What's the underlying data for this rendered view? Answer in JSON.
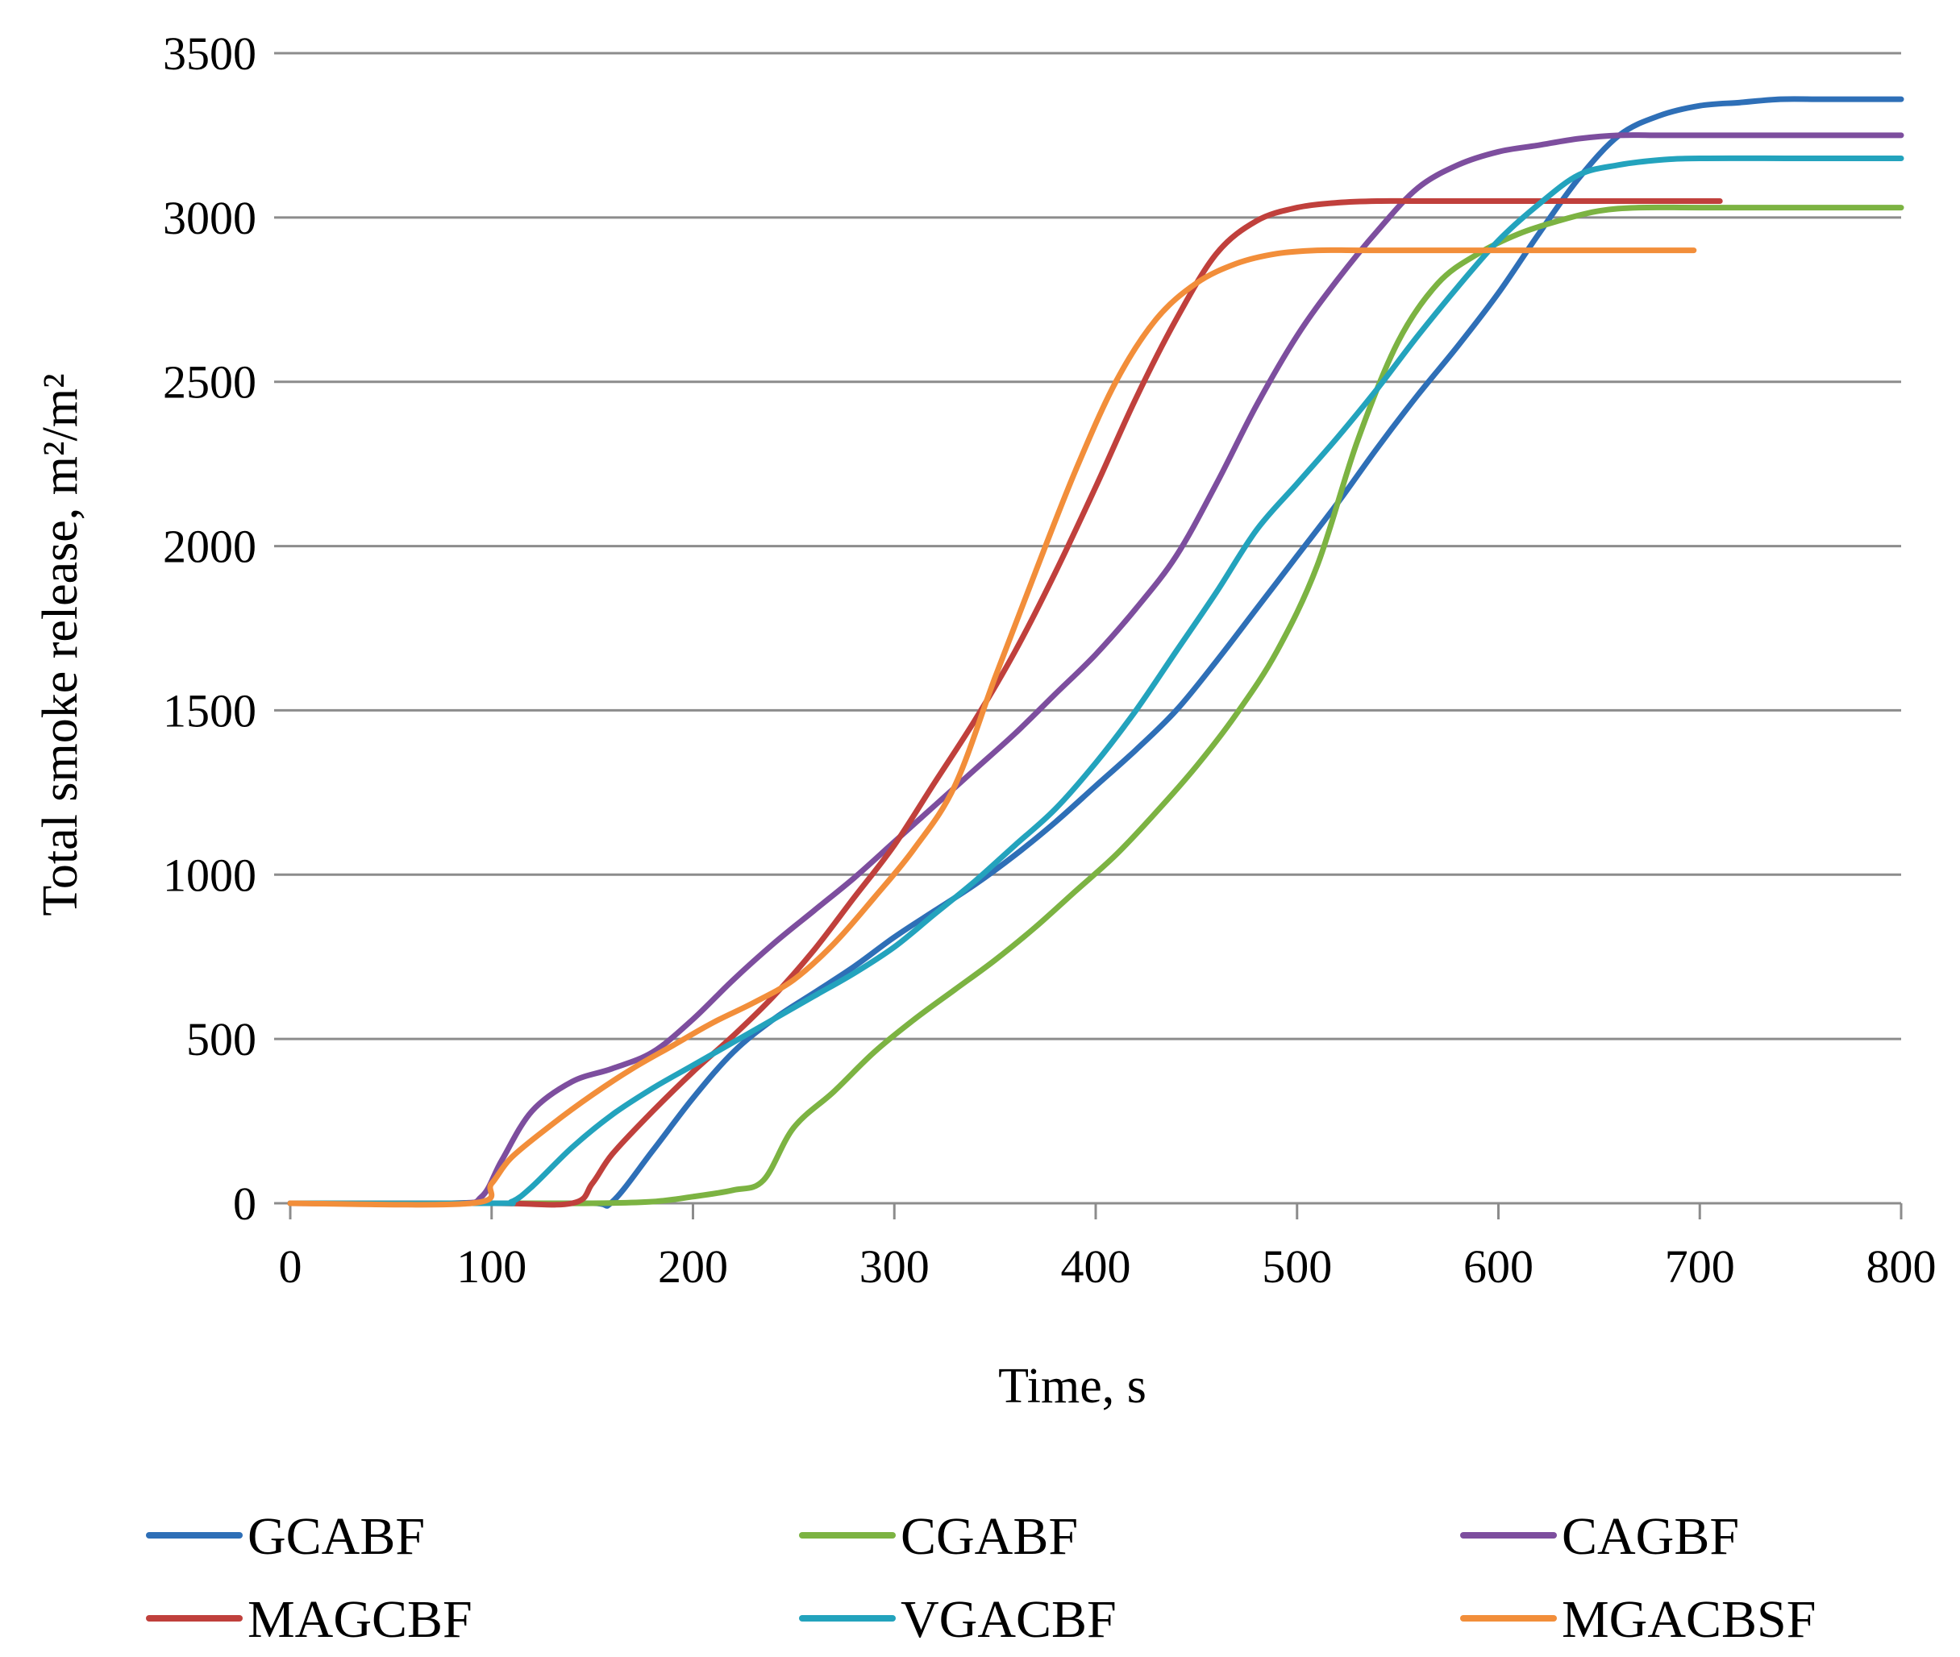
{
  "chart_data": {
    "type": "line",
    "title": "",
    "xlabel": "Time, s",
    "ylabel": "Total smoke release, m²/m²",
    "xlim": [
      0,
      800
    ],
    "ylim": [
      0,
      3500
    ],
    "xticks": [
      0,
      100,
      200,
      300,
      400,
      500,
      600,
      700,
      800
    ],
    "yticks": [
      0,
      500,
      1000,
      1500,
      2000,
      2500,
      3000,
      3500
    ],
    "grid": true,
    "legend_position": "bottom",
    "series": [
      {
        "name": "GCABF",
        "color": "#2e6fb7",
        "x": [
          0,
          100,
          150,
          160,
          180,
          200,
          220,
          240,
          260,
          280,
          300,
          320,
          340,
          360,
          380,
          400,
          420,
          440,
          460,
          480,
          500,
          520,
          540,
          560,
          580,
          600,
          620,
          640,
          660,
          680,
          700,
          720,
          740,
          760,
          780,
          800
        ],
        "y": [
          0,
          0,
          0,
          5,
          160,
          320,
          460,
          560,
          640,
          720,
          810,
          890,
          970,
          1060,
          1160,
          1270,
          1380,
          1500,
          1650,
          1810,
          1970,
          2130,
          2300,
          2460,
          2610,
          2770,
          2950,
          3120,
          3250,
          3310,
          3340,
          3350,
          3360,
          3360,
          3360,
          3360
        ]
      },
      {
        "name": "CGABF",
        "color": "#7cb342",
        "x": [
          0,
          100,
          150,
          180,
          200,
          220,
          235,
          250,
          270,
          290,
          310,
          330,
          350,
          370,
          390,
          410,
          430,
          450,
          470,
          490,
          510,
          530,
          550,
          570,
          590,
          610,
          630,
          650,
          670,
          700,
          750,
          800
        ],
        "y": [
          0,
          0,
          0,
          5,
          20,
          40,
          70,
          230,
          340,
          460,
          560,
          650,
          740,
          840,
          950,
          1060,
          1190,
          1330,
          1490,
          1680,
          1940,
          2320,
          2620,
          2800,
          2890,
          2950,
          2990,
          3020,
          3030,
          3030,
          3030,
          3030
        ]
      },
      {
        "name": "CAGBF",
        "color": "#7d4e9e",
        "x": [
          0,
          80,
          95,
          105,
          120,
          140,
          160,
          180,
          200,
          220,
          240,
          260,
          280,
          300,
          320,
          340,
          360,
          380,
          400,
          420,
          440,
          460,
          480,
          500,
          520,
          540,
          560,
          580,
          600,
          620,
          640,
          660,
          680,
          700,
          750,
          800
        ],
        "y": [
          0,
          0,
          20,
          130,
          280,
          370,
          410,
          460,
          560,
          680,
          790,
          890,
          990,
          1100,
          1210,
          1320,
          1430,
          1550,
          1670,
          1810,
          1970,
          2190,
          2430,
          2640,
          2810,
          2960,
          3090,
          3160,
          3200,
          3220,
          3240,
          3250,
          3250,
          3250,
          3250,
          3250
        ]
      },
      {
        "name": "MAGCBF",
        "color": "#c0403c",
        "x": [
          0,
          100,
          140,
          150,
          160,
          180,
          200,
          220,
          240,
          260,
          280,
          300,
          320,
          340,
          360,
          380,
          400,
          420,
          440,
          460,
          480,
          500,
          520,
          540,
          560,
          600,
          650,
          700,
          710
        ],
        "y": [
          0,
          0,
          0,
          60,
          150,
          280,
          400,
          510,
          630,
          770,
          930,
          1090,
          1280,
          1470,
          1680,
          1920,
          2180,
          2450,
          2690,
          2890,
          2990,
          3030,
          3045,
          3050,
          3050,
          3050,
          3050,
          3050,
          3050
        ]
      },
      {
        "name": "VGACBF",
        "color": "#23a3bd",
        "x": [
          0,
          100,
          110,
          120,
          140,
          160,
          180,
          200,
          220,
          240,
          260,
          280,
          300,
          320,
          340,
          360,
          380,
          400,
          420,
          440,
          460,
          480,
          500,
          520,
          540,
          560,
          580,
          600,
          620,
          640,
          660,
          680,
          700,
          750,
          800
        ],
        "y": [
          0,
          0,
          5,
          50,
          170,
          270,
          350,
          420,
          490,
          560,
          630,
          700,
          780,
          880,
          980,
          1090,
          1200,
          1340,
          1500,
          1680,
          1860,
          2050,
          2190,
          2330,
          2480,
          2640,
          2790,
          2930,
          3040,
          3130,
          3160,
          3175,
          3180,
          3180,
          3180
        ]
      },
      {
        "name": "MGACBSF",
        "color": "#f28e3a",
        "x": [
          0,
          90,
          100,
          110,
          130,
          150,
          170,
          190,
          210,
          230,
          250,
          270,
          290,
          310,
          330,
          350,
          370,
          390,
          410,
          430,
          450,
          470,
          490,
          510,
          530,
          560,
          600,
          650,
          697
        ],
        "y": [
          0,
          0,
          60,
          140,
          240,
          330,
          410,
          480,
          550,
          610,
          680,
          790,
          930,
          1080,
          1270,
          1600,
          1920,
          2230,
          2500,
          2690,
          2800,
          2860,
          2890,
          2900,
          2900,
          2900,
          2900,
          2900,
          2900
        ]
      }
    ]
  }
}
